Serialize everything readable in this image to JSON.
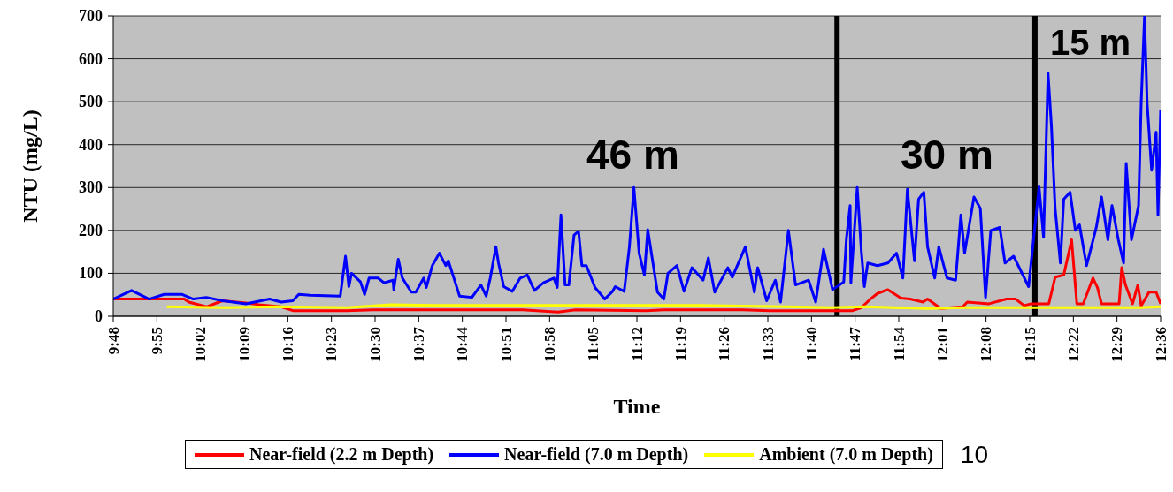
{
  "chart_data": {
    "type": "line",
    "xlabel": "Time",
    "ylabel": "NTU (mg/L)",
    "xlim": [
      9.8,
      12.6
    ],
    "xticks": [
      {
        "value": 9.8,
        "label": "9:48"
      },
      {
        "value": 9.9167,
        "label": "9:55"
      },
      {
        "value": 10.0333,
        "label": "10:02"
      },
      {
        "value": 10.15,
        "label": "10:09"
      },
      {
        "value": 10.2667,
        "label": "10:16"
      },
      {
        "value": 10.3833,
        "label": "10:23"
      },
      {
        "value": 10.5,
        "label": "10:30"
      },
      {
        "value": 10.6167,
        "label": "10:37"
      },
      {
        "value": 10.7333,
        "label": "10:44"
      },
      {
        "value": 10.85,
        "label": "10:51"
      },
      {
        "value": 10.9667,
        "label": "10:58"
      },
      {
        "value": 11.0833,
        "label": "11:05"
      },
      {
        "value": 11.2,
        "label": "11:12"
      },
      {
        "value": 11.3167,
        "label": "11:19"
      },
      {
        "value": 11.4333,
        "label": "11:26"
      },
      {
        "value": 11.55,
        "label": "11:33"
      },
      {
        "value": 11.6667,
        "label": "11:40"
      },
      {
        "value": 11.7833,
        "label": "11:47"
      },
      {
        "value": 11.9,
        "label": "11:54"
      },
      {
        "value": 12.0167,
        "label": "12:01"
      },
      {
        "value": 12.1333,
        "label": "12:08"
      },
      {
        "value": 12.25,
        "label": "12:15"
      },
      {
        "value": 12.3667,
        "label": "12:22"
      },
      {
        "value": 12.4833,
        "label": "12:29"
      },
      {
        "value": 12.6,
        "label": "12:36"
      }
    ],
    "ylim": [
      0,
      700
    ],
    "yticks": [
      0,
      100,
      200,
      300,
      400,
      500,
      600,
      700
    ],
    "grid": "y",
    "legend": "bottom",
    "marker": "none",
    "line_style": "solid",
    "ref_lines": [
      {
        "axis": "x",
        "value": 11.735,
        "color": "#000000"
      },
      {
        "axis": "x",
        "value": 12.264,
        "color": "#000000"
      }
    ],
    "annotations": [
      "46 m",
      "30 m",
      "15 m",
      "10"
    ],
    "series": [
      {
        "name": "Near-field  (2.2 m Depth)",
        "color": "#ff0000",
        "x": [
          9.8,
          9.896,
          9.99,
          10.002,
          10.049,
          10.092,
          10.155,
          10.19,
          10.249,
          10.28,
          10.425,
          10.496,
          10.66,
          10.895,
          10.989,
          11.036,
          11.225,
          11.272,
          11.483,
          11.554,
          11.718,
          11.777,
          11.8,
          11.824,
          11.843,
          11.871,
          11.906,
          11.93,
          11.965,
          11.977,
          12.012,
          12.071,
          12.083,
          12.141,
          12.188,
          12.212,
          12.235,
          12.254,
          12.301,
          12.318,
          12.341,
          12.362,
          12.376,
          12.393,
          12.419,
          12.431,
          12.442,
          12.489,
          12.496,
          12.506,
          12.525,
          12.539,
          12.548,
          12.569,
          12.588,
          12.6
        ],
        "values": [
          40,
          40,
          40,
          33,
          22,
          36,
          31,
          27,
          22,
          13,
          13,
          15,
          15,
          15,
          10,
          15,
          13,
          15,
          15,
          13,
          13,
          13,
          20,
          40,
          53,
          62,
          42,
          40,
          33,
          40,
          18,
          22,
          33,
          29,
          40,
          40,
          25,
          29,
          29,
          91,
          96,
          178,
          29,
          29,
          89,
          67,
          29,
          29,
          113,
          73,
          29,
          73,
          24,
          56,
          56,
          29
        ]
      },
      {
        "name": "Near-field (7.0 m Depth)",
        "color": "#0000ff",
        "x": [
          9.8,
          9.849,
          9.896,
          9.936,
          9.983,
          10.014,
          10.049,
          10.092,
          10.155,
          10.218,
          10.249,
          10.28,
          10.296,
          10.327,
          10.407,
          10.421,
          10.43,
          10.437,
          10.461,
          10.472,
          10.484,
          10.508,
          10.524,
          10.548,
          10.55,
          10.562,
          10.573,
          10.597,
          10.609,
          10.63,
          10.637,
          10.653,
          10.672,
          10.689,
          10.696,
          10.726,
          10.759,
          10.783,
          10.797,
          10.808,
          10.823,
          10.83,
          10.844,
          10.867,
          10.888,
          10.907,
          10.926,
          10.95,
          10.978,
          10.987,
          10.997,
          11.008,
          11.018,
          11.032,
          11.044,
          11.053,
          11.065,
          11.088,
          11.114,
          11.135,
          11.142,
          11.166,
          11.18,
          11.192,
          11.206,
          11.22,
          11.229,
          11.255,
          11.272,
          11.283,
          11.307,
          11.326,
          11.347,
          11.377,
          11.391,
          11.408,
          11.443,
          11.455,
          11.49,
          11.514,
          11.523,
          11.547,
          11.57,
          11.584,
          11.605,
          11.624,
          11.659,
          11.678,
          11.699,
          11.723,
          11.753,
          11.76,
          11.77,
          11.772,
          11.789,
          11.8,
          11.808,
          11.817,
          11.843,
          11.871,
          11.894,
          11.911,
          11.923,
          11.942,
          11.953,
          11.967,
          11.977,
          11.996,
          12.007,
          12.029,
          12.052,
          12.066,
          12.076,
          12.101,
          12.118,
          12.132,
          12.146,
          12.17,
          12.184,
          12.207,
          12.247,
          12.275,
          12.287,
          12.299,
          12.308,
          12.318,
          12.332,
          12.341,
          12.358,
          12.372,
          12.383,
          12.402,
          12.428,
          12.442,
          12.459,
          12.47,
          12.487,
          12.501,
          12.508,
          12.522,
          12.541,
          12.548,
          12.557,
          12.564,
          12.576,
          12.588,
          12.593,
          12.6
        ],
        "values": [
          40,
          60,
          40,
          51,
          51,
          40,
          44,
          36,
          29,
          40,
          33,
          36,
          51,
          49,
          47,
          140,
          69,
          100,
          80,
          51,
          89,
          89,
          78,
          84,
          62,
          133,
          89,
          56,
          56,
          89,
          67,
          118,
          147,
          118,
          129,
          47,
          44,
          73,
          47,
          89,
          162,
          124,
          69,
          58,
          89,
          96,
          60,
          78,
          89,
          67,
          236,
          73,
          73,
          189,
          198,
          118,
          118,
          67,
          40,
          58,
          69,
          58,
          162,
          300,
          147,
          96,
          202,
          56,
          40,
          100,
          118,
          58,
          113,
          84,
          136,
          56,
          113,
          91,
          162,
          56,
          113,
          36,
          84,
          33,
          200,
          73,
          84,
          33,
          156,
          62,
          80,
          180,
          258,
          78,
          300,
          151,
          69,
          124,
          118,
          124,
          147,
          89,
          296,
          129,
          273,
          289,
          162,
          89,
          162,
          89,
          84,
          236,
          147,
          278,
          251,
          44,
          200,
          207,
          124,
          140,
          69,
          302,
          184,
          567,
          444,
          251,
          124,
          273,
          289,
          200,
          213,
          118,
          207,
          278,
          178,
          258,
          178,
          124,
          356,
          178,
          258,
          496,
          700,
          496,
          340,
          429,
          236,
          480
        ]
      },
      {
        "name": "Ambient (7.0 m Depth)",
        "color": "#ffff00",
        "x": [
          9.943,
          10.096,
          10.237,
          10.425,
          10.543,
          10.66,
          10.895,
          11.131,
          11.366,
          11.601,
          11.718,
          11.812,
          11.977,
          12.071,
          12.306,
          12.541,
          12.6
        ],
        "values": [
          22,
          20,
          22,
          20,
          27,
          25,
          25,
          25,
          25,
          22,
          20,
          22,
          18,
          20,
          20,
          20,
          22
        ]
      }
    ]
  }
}
